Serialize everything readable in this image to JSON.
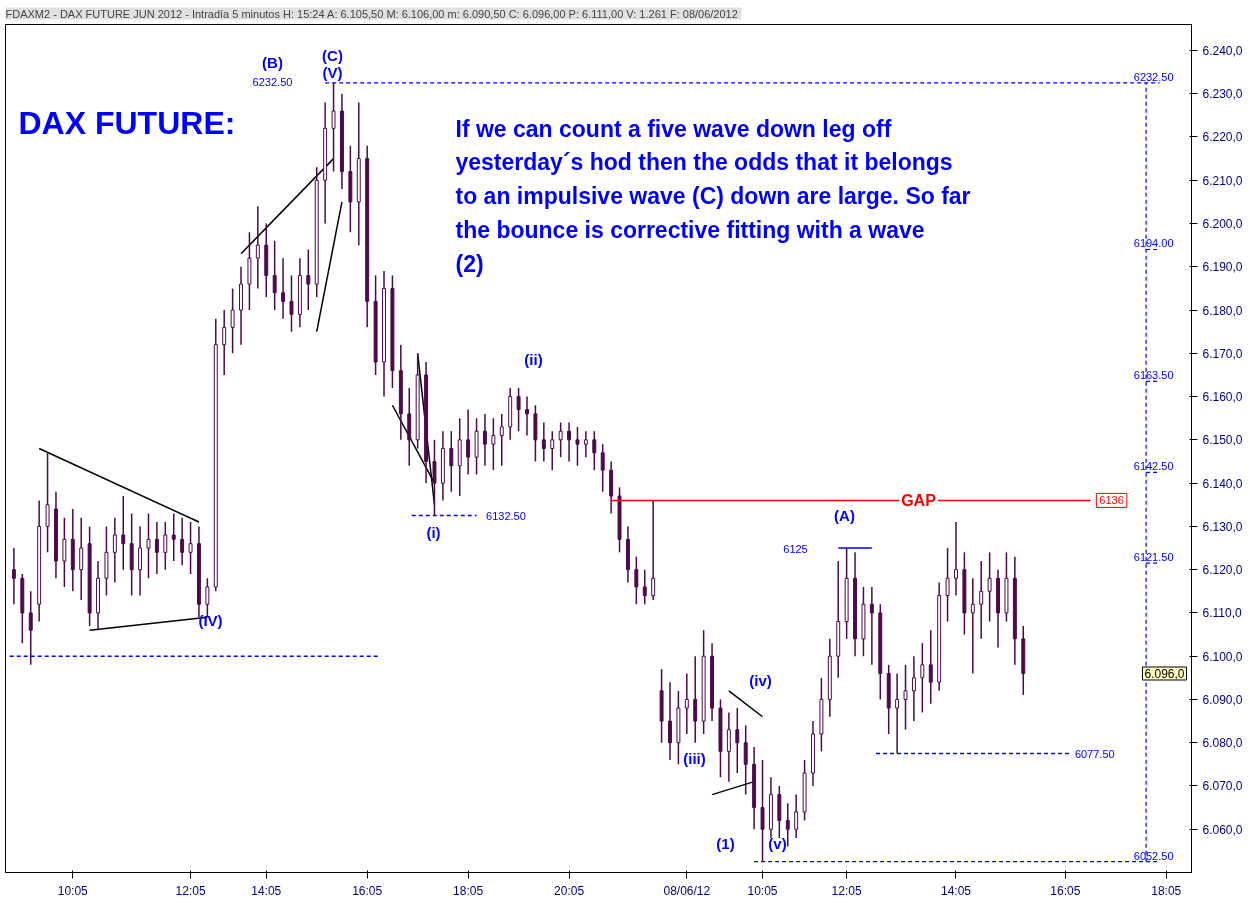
{
  "chart_data": {
    "type": "candlestick",
    "title": "FDAXM2 - DAX FUTURE  JUN 2012 - Intradía 5 minutos H: 15:24 A: 6.105,50 M: 6.106,00 m: 6.090,50 C: 6.096,00 P: 6.111,00 V: 1.261 F: 08/06/2012",
    "color": "#4b0a4b",
    "categories": [
      null,
      null,
      null,
      null,
      null,
      null,
      null,
      "10:05",
      null,
      null,
      null,
      null,
      null,
      null,
      null,
      null,
      null,
      null,
      null,
      null,
      null,
      "12:05",
      null,
      null,
      null,
      null,
      null,
      null,
      null,
      null,
      "14:05",
      null,
      null,
      null,
      null,
      null,
      null,
      null,
      null,
      null,
      null,
      null,
      "16:05",
      null,
      null,
      null,
      null,
      null,
      null,
      null,
      null,
      null,
      null,
      null,
      "18:05",
      null,
      null,
      null,
      null,
      null,
      null,
      null,
      null,
      null,
      null,
      null,
      "20:05",
      null,
      null,
      null,
      null,
      null,
      null,
      null,
      null,
      null,
      null,
      null,
      null,
      null,
      "08/06/12",
      null,
      null,
      null,
      null,
      null,
      null,
      null,
      null,
      "10:05",
      null,
      null,
      null,
      null,
      null,
      null,
      null,
      null,
      null,
      "12:05",
      null,
      null,
      null,
      null,
      null,
      null,
      null,
      null,
      null,
      null,
      null,
      null,
      "14:05",
      null,
      null,
      null,
      null,
      null,
      null,
      null,
      null,
      null,
      null,
      null,
      null,
      "16:05",
      null,
      null,
      null,
      null,
      null,
      null,
      null,
      null,
      null,
      null,
      null,
      "18:05",
      null,
      null
    ],
    "ohlc": [
      [
        6120,
        6125,
        6112,
        6118
      ],
      [
        6118,
        6119,
        6103,
        6110
      ],
      [
        6110,
        6115,
        6098,
        6106
      ],
      [
        6112,
        6136,
        6108,
        6130
      ],
      [
        6130,
        6147,
        6124,
        6135
      ],
      [
        6134,
        6138,
        6118,
        6122
      ],
      [
        6122,
        6132,
        6116,
        6127
      ],
      [
        6127,
        6134,
        6115,
        6120
      ],
      [
        6120,
        6132,
        6113,
        6125
      ],
      [
        6126,
        6130,
        6107,
        6110
      ],
      [
        6110,
        6122,
        6106,
        6118
      ],
      [
        6118,
        6130,
        6114,
        6124
      ],
      [
        6124,
        6132,
        6117,
        6128
      ],
      [
        6128,
        6137,
        6120,
        6126
      ],
      [
        6126,
        6133,
        6114,
        6120
      ],
      [
        6120,
        6130,
        6114,
        6125
      ],
      [
        6125,
        6133,
        6118,
        6127
      ],
      [
        6127,
        6131,
        6119,
        6124
      ],
      [
        6124,
        6131,
        6120,
        6128
      ],
      [
        6128,
        6133,
        6122,
        6127
      ],
      [
        6127,
        6132,
        6121,
        6124
      ],
      [
        6124,
        6131,
        6119,
        6126
      ],
      [
        6126,
        6130,
        6109,
        6112
      ],
      [
        6112,
        6118,
        6109,
        6116
      ],
      [
        6116,
        6178,
        6115,
        6172
      ],
      [
        6172,
        6180,
        6165,
        6176
      ],
      [
        6176,
        6185,
        6170,
        6180
      ],
      [
        6180,
        6190,
        6172,
        6186
      ],
      [
        6186,
        6198,
        6180,
        6192
      ],
      [
        6192,
        6204,
        6185,
        6195
      ],
      [
        6195,
        6200,
        6183,
        6188
      ],
      [
        6188,
        6196,
        6180,
        6184
      ],
      [
        6184,
        6192,
        6178,
        6182
      ],
      [
        6182,
        6188,
        6175,
        6179
      ],
      [
        6179,
        6192,
        6176,
        6188
      ],
      [
        6188,
        6194,
        6180,
        6186
      ],
      [
        6186,
        6213,
        6183,
        6210
      ],
      [
        6210,
        6228,
        6200,
        6222
      ],
      [
        6222,
        6232.5,
        6212,
        6226
      ],
      [
        6226,
        6230,
        6208,
        6212
      ],
      [
        6212,
        6218,
        6198,
        6205
      ],
      [
        6205,
        6228,
        6195,
        6215
      ],
      [
        6215,
        6218,
        6176,
        6182
      ],
      [
        6182,
        6188,
        6165,
        6168
      ],
      [
        6168,
        6189,
        6160,
        6185
      ],
      [
        6185,
        6188,
        6162,
        6166
      ],
      [
        6166,
        6172,
        6150,
        6156
      ],
      [
        6156,
        6162,
        6144,
        6150
      ],
      [
        6150,
        6170,
        6148,
        6165
      ],
      [
        6165,
        6168,
        6140,
        6145
      ],
      [
        6145,
        6150,
        6132.5,
        6140
      ],
      [
        6140,
        6152,
        6136,
        6148
      ],
      [
        6148,
        6152,
        6138,
        6144
      ],
      [
        6144,
        6155,
        6137,
        6150
      ],
      [
        6150,
        6157,
        6142,
        6146
      ],
      [
        6146,
        6155,
        6142,
        6152
      ],
      [
        6152,
        6156,
        6144,
        6149
      ],
      [
        6149,
        6155,
        6143,
        6151
      ],
      [
        6151,
        6156,
        6144,
        6153
      ],
      [
        6153,
        6162,
        6150,
        6160
      ],
      [
        6160,
        6162,
        6152,
        6157
      ],
      [
        6157,
        6160,
        6151,
        6156
      ],
      [
        6156,
        6158,
        6145,
        6150
      ],
      [
        6150,
        6154,
        6145,
        6148
      ],
      [
        6148,
        6152,
        6143,
        6150
      ],
      [
        6150,
        6154,
        6146,
        6152
      ],
      [
        6152,
        6154,
        6145,
        6150
      ],
      [
        6150,
        6153,
        6144,
        6149
      ],
      [
        6149,
        6152,
        6146,
        6150
      ],
      [
        6150,
        6152,
        6143,
        6147
      ],
      [
        6147,
        6149,
        6138,
        6143
      ],
      [
        6143,
        6145,
        6133,
        6137
      ],
      [
        6137,
        6139,
        6124,
        6127
      ],
      [
        6127,
        6130,
        6117,
        6120
      ],
      [
        6120,
        6123,
        6112,
        6116
      ],
      [
        6116,
        6120,
        6112,
        6114
      ],
      [
        6114,
        6136,
        6113,
        6118
      ],
      [
        6092,
        6097,
        6080,
        6085
      ],
      [
        6085,
        6094,
        6076,
        6080
      ],
      [
        6080,
        6092,
        6075,
        6088
      ],
      [
        6088,
        6096,
        6082,
        6090
      ],
      [
        6090,
        6100,
        6080,
        6085
      ],
      [
        6085,
        6106,
        6082,
        6100
      ],
      [
        6100,
        6103,
        6085,
        6088
      ],
      [
        6088,
        6090,
        6072,
        6078
      ],
      [
        6078,
        6087,
        6071,
        6083
      ],
      [
        6083,
        6088,
        6073,
        6080
      ],
      [
        6080,
        6084,
        6068,
        6075
      ],
      [
        6075,
        6079,
        6060,
        6065
      ],
      [
        6065,
        6076,
        6052.5,
        6060
      ],
      [
        6060,
        6072,
        6058,
        6068
      ],
      [
        6068,
        6070,
        6058,
        6062
      ],
      [
        6062,
        6066,
        6056,
        6060
      ],
      [
        6060,
        6068,
        6058,
        6064
      ],
      [
        6064,
        6076,
        6062,
        6073
      ],
      [
        6073,
        6085,
        6070,
        6082
      ],
      [
        6082,
        6095,
        6078,
        6090
      ],
      [
        6090,
        6104,
        6086,
        6100
      ],
      [
        6100,
        6122,
        6095,
        6108
      ],
      [
        6108,
        6125,
        6104,
        6118
      ],
      [
        6118,
        6124,
        6100,
        6104
      ],
      [
        6104,
        6116,
        6100,
        6112
      ],
      [
        6112,
        6116,
        6098,
        6110
      ],
      [
        6110,
        6112,
        6090,
        6096
      ],
      [
        6096,
        6098,
        6082,
        6088
      ],
      [
        6088,
        6096,
        6077.5,
        6090
      ],
      [
        6090,
        6098,
        6083,
        6092
      ],
      [
        6092,
        6100,
        6085,
        6095
      ],
      [
        6095,
        6103,
        6087,
        6098
      ],
      [
        6098,
        6106,
        6089,
        6094
      ],
      [
        6094,
        6117,
        6092,
        6114
      ],
      [
        6114,
        6125,
        6108,
        6118
      ],
      [
        6118,
        6131,
        6114,
        6120
      ],
      [
        6120,
        6124,
        6105,
        6110
      ],
      [
        6110,
        6118,
        6096,
        6112
      ],
      [
        6112,
        6122,
        6104,
        6115
      ],
      [
        6115,
        6124,
        6108,
        6118
      ],
      [
        6118,
        6120,
        6102,
        6110
      ],
      [
        6110,
        6124,
        6108,
        6118
      ],
      [
        6118,
        6123,
        6098,
        6104
      ],
      [
        6104,
        6107,
        6091,
        6096
      ],
      null,
      null,
      null,
      null,
      null,
      null,
      null,
      null,
      null,
      null,
      null,
      null,
      null,
      null,
      null,
      null,
      null,
      null,
      null
    ],
    "series": [
      {
        "type": "line",
        "color": "#0000ff",
        "values": [
          null,
          null,
          null,
          null,
          null,
          null,
          null,
          null,
          null,
          null,
          null,
          null,
          null,
          null,
          null,
          null,
          null,
          null,
          null,
          null,
          null,
          null,
          null,
          null,
          null,
          null,
          null,
          null,
          null,
          null,
          null,
          null,
          null,
          null,
          null,
          null,
          null,
          null,
          null,
          null,
          null,
          null,
          null,
          null,
          null,
          null,
          null,
          null,
          null,
          null,
          null,
          null,
          null,
          null,
          null,
          null,
          null,
          null,
          null,
          null,
          null,
          null,
          null,
          null,
          null,
          null,
          null,
          null,
          null,
          null,
          null,
          null,
          null,
          null,
          null,
          null,
          null,
          null,
          null,
          null,
          null,
          null,
          null,
          null,
          null,
          null,
          null,
          null,
          null,
          null,
          null,
          null,
          null,
          null,
          null,
          null,
          null,
          null,
          6125,
          null,
          null,
          null,
          6125,
          null,
          null,
          null,
          null,
          null,
          null,
          null,
          null,
          null,
          null,
          null,
          null,
          null,
          null,
          null,
          null,
          null,
          null,
          null,
          null,
          null,
          null,
          null,
          null,
          null,
          null,
          null,
          null,
          null,
          null,
          null,
          null,
          null,
          null,
          null,
          null,
          null
        ]
      },
      {
        "type": "line",
        "color": "#000000",
        "values": [
          null,
          null,
          null,
          6148,
          null,
          null,
          null,
          null,
          null,
          null,
          null,
          null,
          null,
          null,
          null,
          null,
          null,
          null,
          null,
          null,
          null,
          null,
          6131,
          null,
          null,
          null,
          null,
          null,
          null,
          null,
          null,
          null,
          null,
          null,
          null,
          null,
          null,
          null,
          null,
          null,
          null,
          null,
          null,
          null,
          null,
          null,
          null,
          null,
          null,
          null,
          null,
          null,
          null,
          null,
          null,
          null,
          null,
          null,
          null,
          null,
          null,
          null,
          null,
          null,
          null,
          null,
          null,
          null,
          null,
          null,
          null,
          null,
          null,
          null,
          null,
          null,
          null,
          null,
          null,
          null,
          null,
          null,
          null,
          null,
          null,
          null,
          null,
          null,
          null,
          null,
          null,
          null,
          null,
          null,
          null,
          null,
          null,
          null,
          null,
          null,
          null,
          null,
          null,
          null,
          null,
          null,
          null,
          null,
          null,
          null,
          null,
          null,
          null,
          null,
          null,
          null,
          null,
          null,
          null,
          null,
          null,
          null,
          null,
          null,
          null,
          null,
          null,
          null,
          null,
          null,
          null,
          null,
          null,
          null,
          null,
          null,
          null,
          null,
          null,
          null
        ]
      },
      {
        "type": "line",
        "color": "#000000",
        "values": [
          null,
          null,
          null,
          null,
          null,
          null,
          null,
          null,
          null,
          6106,
          null,
          null,
          null,
          null,
          null,
          null,
          null,
          null,
          null,
          null,
          null,
          null,
          null,
          6109,
          null,
          null,
          null,
          null,
          null,
          null,
          null,
          null,
          null,
          null,
          null,
          null,
          null,
          null,
          null,
          null,
          null,
          null,
          null,
          null,
          null,
          null,
          null,
          null,
          null,
          null,
          null,
          null,
          null,
          null,
          null,
          null,
          null,
          null,
          null,
          null,
          null,
          null,
          null,
          null,
          null,
          null,
          null,
          null,
          null,
          null,
          null,
          null,
          null,
          null,
          null,
          null,
          null,
          null,
          null,
          null,
          null,
          null,
          null,
          null,
          null,
          null,
          null,
          null,
          null,
          null,
          null,
          null,
          null,
          null,
          null,
          null,
          null,
          null,
          null,
          null,
          null,
          null,
          null,
          null,
          null,
          null,
          null,
          null,
          null,
          null,
          null,
          null,
          null,
          null,
          null,
          null,
          null,
          null,
          null,
          null,
          null,
          null,
          null,
          null,
          null,
          null,
          null,
          null,
          null,
          null,
          null,
          null,
          null,
          null,
          null,
          null,
          null,
          null,
          null,
          null
        ]
      },
      {
        "type": "line",
        "color": "#000000",
        "values": [
          null,
          null,
          null,
          null,
          null,
          null,
          null,
          null,
          null,
          null,
          null,
          null,
          null,
          null,
          null,
          null,
          null,
          null,
          null,
          null,
          null,
          null,
          null,
          null,
          null,
          null,
          null,
          6193,
          null,
          null,
          null,
          null,
          null,
          null,
          null,
          null,
          null,
          null,
          6215,
          null,
          null,
          null,
          null,
          null,
          null,
          null,
          null,
          null,
          null,
          null,
          null,
          null,
          null,
          null,
          null,
          null,
          null,
          null,
          null,
          null,
          null,
          null,
          null,
          null,
          null,
          null,
          null,
          null,
          null,
          null,
          null,
          null,
          null,
          null,
          null,
          null,
          null,
          null,
          null,
          null,
          null,
          null,
          null,
          null,
          null,
          null,
          null,
          null,
          null,
          null,
          null,
          null,
          null,
          null,
          null,
          null,
          null,
          null,
          null,
          null,
          null,
          null,
          null,
          null,
          null,
          null,
          null,
          null,
          null,
          null,
          null,
          null,
          null,
          null,
          null,
          null,
          null,
          null,
          null,
          null,
          null,
          null,
          null,
          null,
          null,
          null,
          null,
          null,
          null,
          null,
          null,
          null,
          null,
          null,
          null,
          null,
          null,
          null,
          null,
          null
        ]
      },
      {
        "type": "line",
        "color": "#000000",
        "values": [
          null,
          null,
          null,
          null,
          null,
          null,
          null,
          null,
          null,
          null,
          null,
          null,
          null,
          null,
          null,
          null,
          null,
          null,
          null,
          null,
          null,
          null,
          null,
          null,
          null,
          null,
          null,
          null,
          null,
          null,
          null,
          null,
          null,
          null,
          null,
          null,
          6175,
          null,
          null,
          6205,
          null,
          null,
          null,
          null,
          null,
          null,
          null,
          null,
          null,
          null,
          null,
          null,
          null,
          null,
          null,
          null,
          null,
          null,
          null,
          null,
          null,
          null,
          null,
          null,
          null,
          null,
          null,
          null,
          null,
          null,
          null,
          null,
          null,
          null,
          null,
          null,
          null,
          null,
          null,
          null,
          null,
          null,
          null,
          null,
          null,
          null,
          null,
          null,
          null,
          null,
          null,
          null,
          null,
          null,
          null,
          null,
          null,
          null,
          null,
          null,
          null,
          null,
          null,
          null,
          null,
          null,
          null,
          null,
          null,
          null,
          null,
          null,
          null,
          null,
          null,
          null,
          null,
          null,
          null,
          null,
          null,
          null,
          null,
          null,
          null,
          null,
          null,
          null,
          null,
          null,
          null,
          null,
          null,
          null,
          null,
          null,
          null,
          null,
          null,
          null
        ]
      },
      {
        "type": "line",
        "color": "#000000",
        "values": [
          null,
          null,
          null,
          null,
          null,
          null,
          null,
          null,
          null,
          null,
          null,
          null,
          null,
          null,
          null,
          null,
          null,
          null,
          null,
          null,
          null,
          null,
          null,
          null,
          null,
          null,
          null,
          null,
          null,
          null,
          null,
          null,
          null,
          null,
          null,
          null,
          null,
          null,
          null,
          null,
          null,
          null,
          null,
          null,
          null,
          6158,
          null,
          null,
          null,
          null,
          6140,
          null,
          null,
          null,
          null,
          null,
          null,
          null,
          null,
          null,
          null,
          null,
          null,
          null,
          null,
          null,
          null,
          null,
          null,
          null,
          null,
          null,
          null,
          null,
          null,
          null,
          null,
          null,
          null,
          null,
          null,
          null,
          null,
          null,
          null,
          null,
          null,
          null,
          null,
          null,
          null,
          null,
          null,
          null,
          null,
          null,
          null,
          null,
          null,
          null,
          null,
          null,
          null,
          null,
          null,
          null,
          null,
          null,
          null,
          null,
          null,
          null,
          null,
          null,
          null,
          null,
          null,
          null,
          null,
          null,
          null,
          null,
          null,
          null,
          null,
          null,
          null,
          null,
          null,
          null,
          null,
          null,
          null,
          null,
          null,
          null,
          null,
          null,
          null,
          null
        ]
      },
      {
        "type": "line",
        "color": "#000000",
        "values": [
          null,
          null,
          null,
          null,
          null,
          null,
          null,
          null,
          null,
          null,
          null,
          null,
          null,
          null,
          null,
          null,
          null,
          null,
          null,
          null,
          null,
          null,
          null,
          null,
          null,
          null,
          null,
          null,
          null,
          null,
          null,
          null,
          null,
          null,
          null,
          null,
          null,
          null,
          null,
          null,
          null,
          null,
          null,
          null,
          null,
          null,
          null,
          null,
          6170,
          null,
          6135,
          null,
          null,
          null,
          null,
          null,
          null,
          null,
          null,
          null,
          null,
          null,
          null,
          null,
          null,
          null,
          null,
          null,
          null,
          null,
          null,
          null,
          null,
          null,
          null,
          null,
          null,
          null,
          null,
          null,
          null,
          null,
          null,
          null,
          null,
          null,
          null,
          null,
          null,
          null,
          null,
          null,
          null,
          null,
          null,
          null,
          null,
          null,
          null,
          null,
          null,
          null,
          null,
          null,
          null,
          null,
          null,
          null,
          null,
          null,
          null,
          null,
          null,
          null,
          null,
          null,
          null,
          null,
          null,
          null,
          null,
          null,
          null,
          null,
          null,
          null,
          null,
          null,
          null,
          null,
          null,
          null,
          null,
          null,
          null,
          null,
          null,
          null,
          null,
          null
        ]
      },
      {
        "type": "line",
        "color": "#000000",
        "values": [
          null,
          null,
          null,
          null,
          null,
          null,
          null,
          null,
          null,
          null,
          null,
          null,
          null,
          null,
          null,
          null,
          null,
          null,
          null,
          null,
          null,
          null,
          null,
          null,
          null,
          null,
          null,
          null,
          null,
          null,
          null,
          null,
          null,
          null,
          null,
          null,
          null,
          null,
          null,
          null,
          null,
          null,
          null,
          null,
          null,
          null,
          null,
          null,
          null,
          null,
          null,
          null,
          null,
          null,
          null,
          null,
          null,
          null,
          null,
          null,
          null,
          null,
          null,
          null,
          null,
          null,
          null,
          null,
          null,
          null,
          null,
          null,
          null,
          null,
          null,
          null,
          null,
          null,
          null,
          null,
          null,
          null,
          null,
          6068,
          null,
          null,
          null,
          null,
          6071,
          null,
          null,
          null,
          null,
          null,
          null,
          null,
          null,
          null,
          null,
          null,
          null,
          null,
          null,
          null,
          null,
          null,
          null,
          null,
          null,
          null,
          null,
          null,
          null,
          null,
          null,
          null,
          null,
          null,
          null,
          null,
          null,
          null,
          null,
          null,
          null,
          null,
          null,
          null,
          null,
          null,
          null,
          null,
          null,
          null,
          null,
          null,
          null,
          null,
          null,
          null
        ]
      },
      {
        "type": "line",
        "color": "#000000",
        "values": [
          null,
          null,
          null,
          null,
          null,
          null,
          null,
          null,
          null,
          null,
          null,
          null,
          null,
          null,
          null,
          null,
          null,
          null,
          null,
          null,
          null,
          null,
          null,
          null,
          null,
          null,
          null,
          null,
          null,
          null,
          null,
          null,
          null,
          null,
          null,
          null,
          null,
          null,
          null,
          null,
          null,
          null,
          null,
          null,
          null,
          null,
          null,
          null,
          null,
          null,
          null,
          null,
          null,
          null,
          null,
          null,
          null,
          null,
          null,
          null,
          null,
          null,
          null,
          null,
          null,
          null,
          null,
          null,
          null,
          null,
          null,
          null,
          null,
          null,
          null,
          null,
          null,
          null,
          null,
          null,
          null,
          null,
          null,
          null,
          null,
          6092,
          null,
          null,
          null,
          6086,
          null,
          null,
          null,
          null,
          null,
          null,
          null,
          null,
          null,
          null,
          null,
          null,
          null,
          null,
          null,
          null,
          null,
          null,
          null,
          null,
          null,
          null,
          null,
          null,
          null,
          null,
          null,
          null,
          null,
          null,
          null,
          null,
          null,
          null,
          null,
          null,
          null,
          null,
          null,
          null,
          null,
          null,
          null,
          null,
          null,
          null,
          null,
          null,
          null,
          null
        ]
      }
    ],
    "ref_lines": [
      {
        "axis": "y",
        "value": 6232.5,
        "label": "6232.50",
        "color": "#0000ff",
        "line_style": "dashed"
      },
      {
        "axis": "y",
        "value": 6194,
        "label": "6194.00",
        "color": "#0000ff",
        "line_style": "dashed"
      },
      {
        "axis": "y",
        "value": 6163.5,
        "label": "6163.50",
        "color": "#0000ff",
        "line_style": "dashed"
      },
      {
        "axis": "y",
        "value": 6142.5,
        "label": "6142.50",
        "color": "#0000ff",
        "line_style": "dashed"
      },
      {
        "axis": "y",
        "value": 6121.5,
        "label": "6121.50",
        "color": "#0000ff",
        "line_style": "dashed"
      },
      {
        "axis": "y",
        "value": 6052.5,
        "label": "6052.50",
        "color": "#0000ff",
        "line_style": "dashed"
      },
      {
        "axis": "y",
        "value": 6132.5,
        "label": "6132.50",
        "color": "#0000ff",
        "line_style": "dashed"
      },
      {
        "axis": "y",
        "value": 6077.5,
        "label": "6077.50",
        "color": "#0000ff",
        "line_style": "dashed"
      },
      {
        "axis": "y",
        "value": 6100,
        "label": null,
        "color": "#0000ff",
        "line_style": "dashed"
      },
      {
        "axis": "y",
        "value": 6136,
        "label": "6136",
        "color": "#ff0000"
      }
    ],
    "ylim": [
      6050,
      6246
    ],
    "yticks": [
      {
        "value": 6060,
        "label": "6.060,0"
      },
      {
        "value": 6070,
        "label": "6.070,0"
      },
      {
        "value": 6080,
        "label": "6.080,0"
      },
      {
        "value": 6090,
        "label": "6.090,0"
      },
      {
        "value": 6100,
        "label": "6.100,0"
      },
      {
        "value": 6110,
        "label": "6.110,0"
      },
      {
        "value": 6120,
        "label": "6.120,0"
      },
      {
        "value": 6130,
        "label": "6.130,0"
      },
      {
        "value": 6140,
        "label": "6.140,0"
      },
      {
        "value": 6150,
        "label": "6.150,0"
      },
      {
        "value": 6160,
        "label": "6.160,0"
      },
      {
        "value": 6170,
        "label": "6.170,0"
      },
      {
        "value": 6180,
        "label": "6.180,0"
      },
      {
        "value": 6190,
        "label": "6.190,0"
      },
      {
        "value": 6200,
        "label": "6.200,0"
      },
      {
        "value": 6210,
        "label": "6.210,0"
      },
      {
        "value": 6220,
        "label": "6.220,0"
      },
      {
        "value": 6230,
        "label": "6.230,0"
      },
      {
        "value": 6240,
        "label": "6.240,0"
      }
    ],
    "grid": false,
    "annotations": [
      "DAX FUTURE:",
      "If we can count a five wave down leg off yesterday´s hod then the odds that it belongs to an impulsive wave (C) down are large. So far the bounce is corrective fitting with a wave (2)",
      "(B)",
      "6232.50",
      "(C)",
      "(V)",
      "(IV)",
      {
        "text": "(i)",
        "y": 6132.5
      },
      "(ii)",
      "(iii)",
      "(iv)",
      "(1)",
      "(v)",
      "(A)",
      {
        "text": "GAP",
        "y": 6136
      },
      "6.096,0",
      "6125"
    ]
  }
}
